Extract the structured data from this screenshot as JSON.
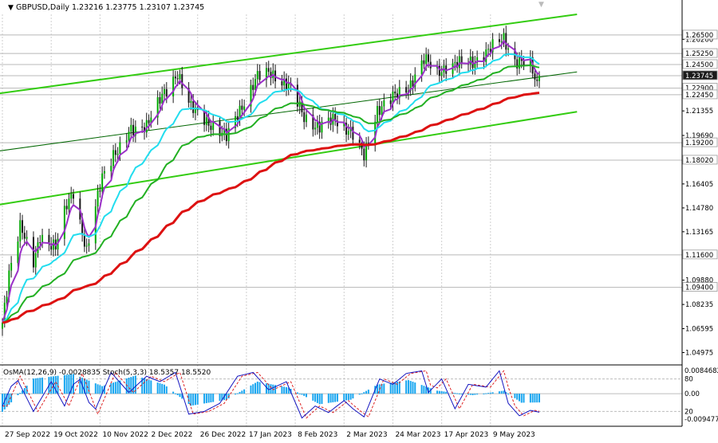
{
  "header": {
    "symbol_line": "GBPUSD,Daily  1.23216 1.23775 1.23107 1.23745"
  },
  "oscillator_header": "OsMA(12,26,9) -0.0028835   Stoch(5,3,3) 18.5357 18.5520",
  "colors": {
    "bull": "#00aa00",
    "bear": "#1a1a1a",
    "ema_fast": "#9b30c8",
    "ema_mid": "#22ddee",
    "ema_slow_green": "#22b022",
    "ema_long": "#dd1111",
    "channel": "#33cc11",
    "trend": "#006600",
    "osma": "#18a6f0",
    "stoch_main": "#1515c0",
    "stoch_signal": "#dd2222",
    "price_tag": "#1a1a1a"
  },
  "chart_data": [
    {
      "type": "candlestick",
      "panel": "main",
      "ylim": [
        1.043,
        1.279
      ],
      "price_axis_labels": [
        "1.26200",
        "1.22690",
        "1.21355",
        "1.19690",
        "1.16405",
        "1.14780",
        "1.13165",
        "1.09880",
        "1.08235",
        "1.06595",
        "1.04975"
      ],
      "level_labels": [
        "1.26500",
        "1.25250",
        "1.24500",
        "1.23745",
        "1.22900",
        "1.22450",
        "1.19200",
        "1.18020",
        "1.11600",
        "1.09400"
      ],
      "current_price": 1.23745,
      "x_tick_labels": [
        "27 Sep 2022",
        "19 Oct 2022",
        "10 Nov 2022",
        "2 Dec 2022",
        "26 Dec 2022",
        "17 Jan 2023",
        "8 Feb 2023",
        "2 Mar 2023",
        "24 Mar 2023",
        "17 Apr 2023",
        "9 May 2023"
      ],
      "close_anchors": [
        [
          "2022-09-26",
          1.07
        ],
        [
          "2022-09-29",
          1.105
        ],
        [
          "2022-10-04",
          1.135
        ],
        [
          "2022-10-10",
          1.11
        ],
        [
          "2022-10-13",
          1.13
        ],
        [
          "2022-10-20",
          1.12
        ],
        [
          "2022-10-25",
          1.15
        ],
        [
          "2022-10-28",
          1.16
        ],
        [
          "2022-11-03",
          1.117
        ],
        [
          "2022-11-10",
          1.17
        ],
        [
          "2022-11-15",
          1.185
        ],
        [
          "2022-11-18",
          1.187
        ],
        [
          "2022-11-23",
          1.2
        ],
        [
          "2022-11-30",
          1.205
        ],
        [
          "2022-12-06",
          1.22
        ],
        [
          "2022-12-14",
          1.24
        ],
        [
          "2022-12-20",
          1.215
        ],
        [
          "2022-12-29",
          1.205
        ],
        [
          "2023-01-05",
          1.195
        ],
        [
          "2023-01-11",
          1.215
        ],
        [
          "2023-01-19",
          1.236
        ],
        [
          "2023-01-25",
          1.24
        ],
        [
          "2023-02-02",
          1.23
        ],
        [
          "2023-02-09",
          1.21
        ],
        [
          "2023-02-16",
          1.202
        ],
        [
          "2023-02-23",
          1.208
        ],
        [
          "2023-03-02",
          1.2
        ],
        [
          "2023-03-08",
          1.182
        ],
        [
          "2023-03-14",
          1.215
        ],
        [
          "2023-03-21",
          1.222
        ],
        [
          "2023-03-28",
          1.23
        ],
        [
          "2023-04-04",
          1.248
        ],
        [
          "2023-04-10",
          1.24
        ],
        [
          "2023-04-14",
          1.244
        ],
        [
          "2023-04-20",
          1.245
        ],
        [
          "2023-04-26",
          1.247
        ],
        [
          "2023-05-04",
          1.255
        ],
        [
          "2023-05-10",
          1.263
        ],
        [
          "2023-05-15",
          1.248
        ],
        [
          "2023-05-22",
          1.244
        ],
        [
          "2023-05-25",
          1.231
        ],
        [
          "2023-05-26",
          1.2374
        ]
      ],
      "overlays": [
        {
          "name": "EMA fast",
          "color_key": "ema_fast",
          "period": 5
        },
        {
          "name": "EMA mid",
          "color_key": "ema_mid",
          "period": 20
        },
        {
          "name": "EMA slow",
          "color_key": "ema_slow_green",
          "period": 40
        },
        {
          "name": "EMA long",
          "color_key": "ema_long",
          "period": 100
        }
      ],
      "channel_lines": [
        {
          "from": [
            "2022-09-08",
            1.222
          ],
          "to": [
            "2023-06-12",
            1.279
          ]
        },
        {
          "from": [
            "2022-09-08",
            1.146
          ],
          "to": [
            "2023-06-12",
            1.213
          ]
        }
      ],
      "trend_line": {
        "from": [
          "2022-09-08",
          1.183
        ],
        "to": [
          "2023-06-12",
          1.24
        ]
      }
    },
    {
      "type": "bar+line",
      "panel": "oscillator",
      "y_axis_labels": [
        "0.0084682",
        "80",
        "0.00",
        "20",
        "-0.0094770"
      ],
      "osma_levels": [
        [
          "2022-09-26",
          -0.006
        ],
        [
          "2022-10-10",
          0.005
        ],
        [
          "2022-10-28",
          0.0065
        ],
        [
          "2022-11-10",
          0.0025
        ],
        [
          "2022-11-25",
          0.006
        ],
        [
          "2022-12-08",
          0.003
        ],
        [
          "2022-12-20",
          -0.004
        ],
        [
          "2023-01-05",
          -0.002
        ],
        [
          "2023-01-19",
          0.004
        ],
        [
          "2023-02-02",
          0.002
        ],
        [
          "2023-02-16",
          -0.0035
        ],
        [
          "2023-03-02",
          -0.002
        ],
        [
          "2023-03-14",
          0.003
        ],
        [
          "2023-03-28",
          0.0045
        ],
        [
          "2023-04-10",
          0.001
        ],
        [
          "2023-04-26",
          -0.0005
        ],
        [
          "2023-05-10",
          0.001
        ],
        [
          "2023-05-18",
          -0.003
        ],
        [
          "2023-05-26",
          -0.0029
        ]
      ],
      "stoch_levels": [
        [
          "2022-09-26",
          30
        ],
        [
          "2022-10-02",
          85
        ],
        [
          "2022-10-10",
          20
        ],
        [
          "2022-10-18",
          75
        ],
        [
          "2022-10-24",
          30
        ],
        [
          "2022-10-30",
          90
        ],
        [
          "2022-11-06",
          15
        ],
        [
          "2022-11-14",
          92
        ],
        [
          "2022-11-22",
          55
        ],
        [
          "2022-11-30",
          85
        ],
        [
          "2022-12-06",
          75
        ],
        [
          "2022-12-13",
          92
        ],
        [
          "2022-12-19",
          15
        ],
        [
          "2022-12-26",
          20
        ],
        [
          "2023-01-02",
          35
        ],
        [
          "2023-01-10",
          85
        ],
        [
          "2023-01-17",
          92
        ],
        [
          "2023-01-24",
          60
        ],
        [
          "2023-02-01",
          75
        ],
        [
          "2023-02-08",
          8
        ],
        [
          "2023-02-14",
          30
        ],
        [
          "2023-02-20",
          18
        ],
        [
          "2023-02-27",
          40
        ],
        [
          "2023-03-03",
          25
        ],
        [
          "2023-03-08",
          10
        ],
        [
          "2023-03-15",
          80
        ],
        [
          "2023-03-21",
          70
        ],
        [
          "2023-03-27",
          90
        ],
        [
          "2023-04-03",
          95
        ],
        [
          "2023-04-06",
          55
        ],
        [
          "2023-04-12",
          80
        ],
        [
          "2023-04-18",
          25
        ],
        [
          "2023-04-24",
          70
        ],
        [
          "2023-05-02",
          65
        ],
        [
          "2023-05-08",
          95
        ],
        [
          "2023-05-12",
          35
        ],
        [
          "2023-05-17",
          12
        ],
        [
          "2023-05-22",
          22
        ],
        [
          "2023-05-26",
          18.5
        ]
      ],
      "stoch_signal_shift_days": 2
    }
  ]
}
